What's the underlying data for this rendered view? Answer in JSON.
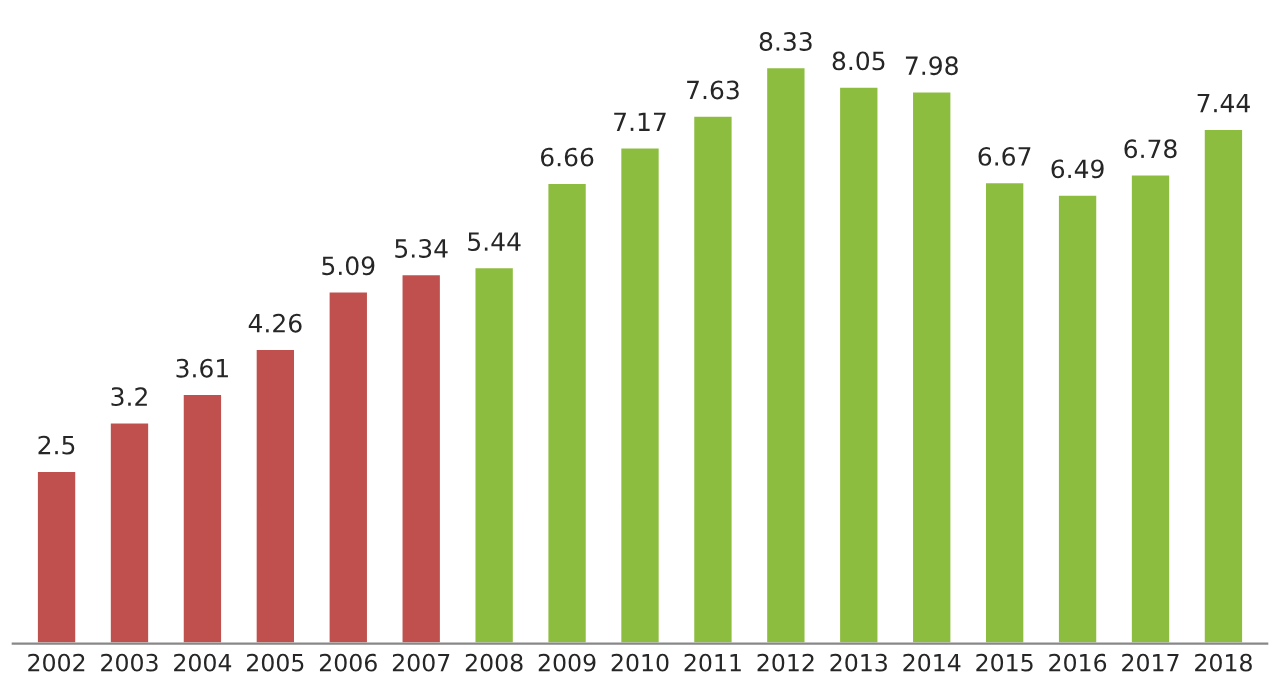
{
  "chart_data": {
    "type": "bar",
    "categories": [
      "2002",
      "2003",
      "2004",
      "2005",
      "2006",
      "2007",
      "2008",
      "2009",
      "2010",
      "2011",
      "2012",
      "2013",
      "2014",
      "2015",
      "2016",
      "2017",
      "2018"
    ],
    "values": [
      2.5,
      3.2,
      3.61,
      4.26,
      5.09,
      5.34,
      5.44,
      6.66,
      7.17,
      7.63,
      8.33,
      8.05,
      7.98,
      6.67,
      6.49,
      6.78,
      7.44
    ],
    "colors": [
      "#c0504d",
      "#c0504d",
      "#c0504d",
      "#c0504d",
      "#c0504d",
      "#c0504d",
      "#8cbd3f",
      "#8cbd3f",
      "#8cbd3f",
      "#8cbd3f",
      "#8cbd3f",
      "#8cbd3f",
      "#8cbd3f",
      "#8cbd3f",
      "#8cbd3f",
      "#8cbd3f",
      "#8cbd3f"
    ],
    "data_labels": true,
    "grid": false,
    "legend": false,
    "tick_labels": "x"
  }
}
